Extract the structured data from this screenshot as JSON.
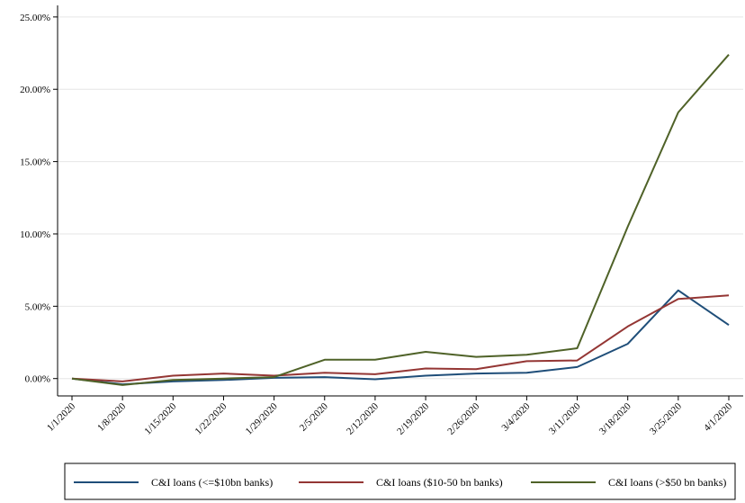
{
  "chart_data": {
    "type": "line",
    "title": "",
    "xlabel": "",
    "ylabel": "",
    "x": [
      "1/1/2020",
      "1/8/2020",
      "1/15/2020",
      "1/22/2020",
      "1/29/2020",
      "2/5/2020",
      "2/12/2020",
      "2/19/2020",
      "2/26/2020",
      "3/4/2020",
      "3/11/2020",
      "3/18/2020",
      "3/25/2020",
      "4/1/2020"
    ],
    "yticks": [
      "0.00%",
      "5.00%",
      "10.00%",
      "15.00%",
      "20.00%",
      "25.00%"
    ],
    "ylim": [
      -1.2,
      25.8
    ],
    "y_unit": "%",
    "grid": "horizontal",
    "legend_position": "bottom",
    "series": [
      {
        "name": "C&I loans (<=$10bn banks)",
        "color": "#1f4e79",
        "values": [
          0.0,
          -0.4,
          -0.2,
          -0.1,
          0.05,
          0.1,
          -0.05,
          0.2,
          0.35,
          0.4,
          0.8,
          2.4,
          6.1,
          3.7
        ]
      },
      {
        "name": "C&I loans ($10-50 bn banks)",
        "color": "#943634",
        "values": [
          0.0,
          -0.2,
          0.2,
          0.35,
          0.2,
          0.4,
          0.3,
          0.7,
          0.65,
          1.2,
          1.25,
          3.6,
          5.5,
          5.75
        ]
      },
      {
        "name": "C&I loans (>$50 bn banks)",
        "color": "#4f6228",
        "values": [
          0.0,
          -0.45,
          -0.1,
          0.0,
          0.1,
          1.3,
          1.3,
          1.85,
          1.5,
          1.65,
          2.1,
          10.5,
          18.4,
          22.4
        ]
      }
    ]
  }
}
